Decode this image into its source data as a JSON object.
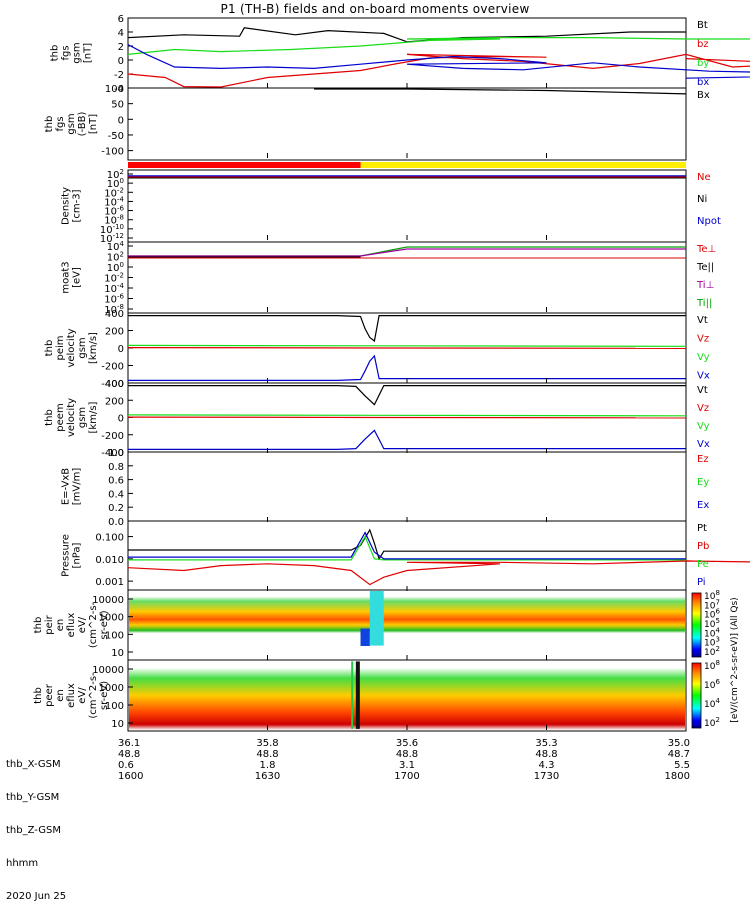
{
  "title": "P1 (TH-B) fields and on-board moments overview",
  "colors": {
    "black": "#000000",
    "red": "#e00000",
    "green": "#18dd18",
    "blue": "#0000cc",
    "purple": "#a000a0",
    "darkgreen": "#00a000",
    "yellow": "#ffee00"
  },
  "chart_data": [
    {
      "type": "line",
      "panel": "fgs_gsm",
      "ylabel_lines": [
        "thb",
        "fgs",
        "gsm",
        "[nT]"
      ],
      "ylim": [
        -4,
        6
      ],
      "yticks": [
        "6",
        "4",
        "2",
        "0",
        "-2",
        "-4"
      ],
      "legend": [
        {
          "label": "Bt",
          "color": "#000000"
        },
        {
          "label": "bz",
          "color": "#e00000"
        },
        {
          "label": "by",
          "color": "#18dd18"
        },
        {
          "label": "bx",
          "color": "#0000cc"
        }
      ],
      "series": [
        {
          "color": "#000000",
          "x": [
            1600,
            1612,
            1624,
            1625,
            1636,
            1643,
            1655,
            1700,
            1712,
            1730,
            1748,
            1800
          ],
          "y": [
            3.2,
            3.6,
            3.4,
            4.6,
            3.6,
            4.2,
            3.8,
            2.6,
            3.2,
            3.4,
            4.0,
            4.0
          ]
        },
        {
          "color": "#e00000",
          "x": [
            1600,
            1608,
            1612,
            1620,
            1630,
            1640,
            1650,
            1658,
            1665,
            1680,
            1690,
            1700,
            1712,
            1725,
            1740,
            1750,
            1760,
            1770,
            1785,
            1800
          ],
          "y": [
            -2.0,
            -2.5,
            -3.8,
            -4.0,
            -2.5,
            -2.0,
            -1.5,
            -0.5,
            0.3,
            0.5,
            0.4,
            0.8,
            0.2,
            -0.2,
            -1.2,
            -0.5,
            0.8,
            -1.0,
            -0.5,
            0.2
          ]
        },
        {
          "color": "#18dd18",
          "x": [
            1600,
            1610,
            1620,
            1635,
            1650,
            1665,
            1680,
            1700,
            1720,
            1740,
            1760,
            1780,
            1800
          ],
          "y": [
            0.8,
            1.5,
            1.2,
            1.5,
            2.0,
            2.8,
            3.0,
            3.0,
            3.2,
            3.2,
            3.0,
            3.0,
            3.0
          ]
        },
        {
          "color": "#0000cc",
          "x": [
            1600,
            1604,
            1610,
            1620,
            1630,
            1640,
            1650,
            1660,
            1670,
            1680,
            1690,
            1700,
            1712,
            1725,
            1740,
            1750,
            1765,
            1780,
            1790,
            1800
          ],
          "y": [
            2.2,
            0.8,
            -1.0,
            -1.2,
            -1.0,
            -1.2,
            -0.6,
            0.0,
            0.5,
            0.2,
            -0.4,
            -0.6,
            -1.2,
            -1.4,
            -0.4,
            -1.0,
            -1.6,
            -1.8,
            -2.2,
            -2.6
          ]
        }
      ]
    },
    {
      "type": "line",
      "panel": "fgs_gsm_ofs",
      "ylabel_lines": [
        "thb",
        "fgs",
        "gsm",
        "(-BB)",
        "[nT]"
      ],
      "ylim": [
        -130,
        100
      ],
      "yticks": [
        "100",
        "50",
        "0",
        "-50",
        "-100"
      ],
      "legend": [
        {
          "label": "Bx",
          "color": "#000000"
        }
      ],
      "series": [
        {
          "color": "#000000",
          "x": [
            1640,
            1645,
            1700,
            1730,
            1800
          ],
          "y": [
            101,
            100,
            99,
            92,
            81
          ]
        }
      ]
    },
    {
      "type": "bar",
      "panel": "mode_bar",
      "segments": [
        {
          "from": 1600,
          "to": 1650,
          "color": "#ff0000"
        },
        {
          "from": 1650,
          "to": 1800,
          "color": "#ffee00"
        }
      ]
    },
    {
      "type": "line",
      "panel": "density",
      "ylabel_lines": [
        "Density",
        "[cm-3]"
      ],
      "scale": "log",
      "yticks": [
        "10^2",
        "10^0",
        "10^-2",
        "10^-4",
        "10^-6",
        "10^-8",
        "10^-10",
        "10^-12"
      ],
      "legend": [
        {
          "label": "Ne",
          "color": "#e00000"
        },
        {
          "label": "Ni",
          "color": "#000000"
        },
        {
          "label": "Npot",
          "color": "#0000cc"
        }
      ]
    },
    {
      "type": "line",
      "panel": "temperature",
      "ylabel_lines": [
        "moat3",
        "[eV]"
      ],
      "scale": "log",
      "yticks": [
        "10^4",
        "10^2",
        "10^0",
        "10^-2",
        "10^-4",
        "10^-6",
        "10^-8"
      ],
      "legend": [
        {
          "label": "Te⊥",
          "color": "#e00000"
        },
        {
          "label": "Te||",
          "color": "#000000"
        },
        {
          "label": "Ti⊥",
          "color": "#a000a0"
        },
        {
          "label": "Ti||",
          "color": "#00a000"
        }
      ]
    },
    {
      "type": "line",
      "panel": "peim_velocity",
      "ylabel_lines": [
        "thb",
        "peim",
        "velocity",
        "gsm",
        "[km/s]"
      ],
      "ylim": [
        -400,
        400
      ],
      "yticks": [
        "400",
        "200",
        "0",
        "-200",
        "-400"
      ],
      "legend": [
        {
          "label": "Vt",
          "color": "#000000"
        },
        {
          "label": "Vz",
          "color": "#e00000"
        },
        {
          "label": "Vy",
          "color": "#18dd18"
        },
        {
          "label": "Vx",
          "color": "#0000cc"
        }
      ],
      "series": [
        {
          "color": "#000000",
          "x": [
            1600,
            1645,
            1650,
            1651,
            1652,
            1653,
            1654,
            1800
          ],
          "y": [
            370,
            370,
            360,
            220,
            120,
            80,
            370,
            370
          ]
        },
        {
          "color": "#e00000",
          "x": [
            1600,
            1800
          ],
          "y": [
            5,
            -5
          ]
        },
        {
          "color": "#18dd18",
          "x": [
            1600,
            1800
          ],
          "y": [
            30,
            20
          ]
        },
        {
          "color": "#0000cc",
          "x": [
            1600,
            1645,
            1650,
            1651,
            1652,
            1653,
            1654,
            1800
          ],
          "y": [
            -370,
            -370,
            -360,
            -260,
            -150,
            -90,
            -350,
            -350
          ]
        }
      ]
    },
    {
      "type": "line",
      "panel": "peem_velocity",
      "ylabel_lines": [
        "thb",
        "peem",
        "velocity",
        "gsm",
        "[km/s]"
      ],
      "ylim": [
        -400,
        400
      ],
      "yticks": [
        "400",
        "200",
        "0",
        "-200",
        "-400"
      ],
      "legend": [
        {
          "label": "Vt",
          "color": "#000000"
        },
        {
          "label": "Vz",
          "color": "#e00000"
        },
        {
          "label": "Vy",
          "color": "#18dd18"
        },
        {
          "label": "Vx",
          "color": "#0000cc"
        }
      ],
      "series": [
        {
          "color": "#000000",
          "x": [
            1600,
            1645,
            1649,
            1651,
            1653,
            1655,
            1800
          ],
          "y": [
            370,
            370,
            360,
            250,
            150,
            370,
            370
          ]
        },
        {
          "color": "#e00000",
          "x": [
            1600,
            1800
          ],
          "y": [
            5,
            -5
          ]
        },
        {
          "color": "#18dd18",
          "x": [
            1600,
            1800
          ],
          "y": [
            30,
            20
          ]
        },
        {
          "color": "#0000cc",
          "x": [
            1600,
            1645,
            1649,
            1651,
            1653,
            1655,
            1800
          ],
          "y": [
            -370,
            -370,
            -360,
            -250,
            -150,
            -360,
            -360
          ]
        }
      ]
    },
    {
      "type": "line",
      "panel": "efield",
      "ylabel_lines": [
        "E=-VxB",
        "[mV/m]"
      ],
      "ylim": [
        0,
        1
      ],
      "yticks": [
        "1.0",
        "0.8",
        "0.6",
        "0.4",
        "0.2",
        "0.0"
      ],
      "legend": [
        {
          "label": "Ez",
          "color": "#e00000"
        },
        {
          "label": "Ey",
          "color": "#18dd18"
        },
        {
          "label": "Ex",
          "color": "#0000cc"
        }
      ]
    },
    {
      "type": "line",
      "panel": "pressure",
      "ylabel_lines": [
        "Pressure",
        "[nPa]"
      ],
      "scale": "log",
      "ylim": [
        0.0004,
        0.5
      ],
      "yticks": [
        "0.100",
        "0.010",
        "0.001"
      ],
      "ytick_values": [
        0.1,
        0.01,
        0.001
      ],
      "legend": [
        {
          "label": "Pt",
          "color": "#000000"
        },
        {
          "label": "Pb",
          "color": "#e00000"
        },
        {
          "label": "Pe",
          "color": "#18dd18"
        },
        {
          "label": "Pi",
          "color": "#0000cc"
        }
      ],
      "series": [
        {
          "color": "#000000",
          "x": [
            1600,
            1648,
            1650,
            1652,
            1653,
            1654,
            1655,
            1800
          ],
          "y": [
            0.025,
            0.025,
            0.04,
            0.2,
            0.05,
            0.01,
            0.022,
            0.022
          ]
        },
        {
          "color": "#e00000",
          "x": [
            1600,
            1612,
            1620,
            1630,
            1640,
            1648,
            1652,
            1655,
            1660,
            1680,
            1700,
            1720,
            1740,
            1760,
            1780,
            1800
          ],
          "y": [
            0.004,
            0.003,
            0.005,
            0.006,
            0.005,
            0.003,
            0.0007,
            0.0015,
            0.003,
            0.006,
            0.007,
            0.007,
            0.006,
            0.008,
            0.007,
            0.008
          ]
        },
        {
          "color": "#18dd18",
          "x": [
            1600,
            1648,
            1651,
            1653,
            1655,
            1800
          ],
          "y": [
            0.009,
            0.009,
            0.1,
            0.01,
            0.009,
            0.009
          ]
        },
        {
          "color": "#0000cc",
          "x": [
            1600,
            1648,
            1651,
            1653,
            1655,
            1800
          ],
          "y": [
            0.012,
            0.012,
            0.15,
            0.02,
            0.01,
            0.01
          ]
        }
      ]
    },
    {
      "type": "heatmap",
      "panel": "peir_en_eflux",
      "ylabel_lines": [
        "thb",
        "peir",
        "en",
        "eflux",
        "eV/",
        "(cm^2-s-",
        "sr-eV)"
      ],
      "scale": "log",
      "yticks": [
        "10000",
        "1000",
        "100",
        "10"
      ]
    },
    {
      "type": "heatmap",
      "panel": "peer_en_eflux",
      "ylabel_lines": [
        "thb",
        "peer",
        "en",
        "eflux",
        "eV/",
        "(cm^2-s-",
        "sr-eV)"
      ],
      "scale": "log",
      "yticks": [
        "10000",
        "1000",
        "100",
        "10"
      ]
    }
  ],
  "xaxis": {
    "range": [
      1600,
      1800
    ],
    "labels": [
      "thb_X-GSM",
      "thb_Y-GSM",
      "thb_Z-GSM",
      "hhmm",
      "2020 Jun 25"
    ],
    "columns": [
      {
        "x": 1600,
        "values": [
          "36.1",
          "48.8",
          "0.6",
          "1600"
        ]
      },
      {
        "x": 1630,
        "values": [
          "35.8",
          "48.8",
          "1.8",
          "1630"
        ]
      },
      {
        "x": 1700,
        "values": [
          "35.6",
          "48.8",
          "3.1",
          "1700"
        ]
      },
      {
        "x": 1730,
        "values": [
          "35.3",
          "48.8",
          "4.3",
          "1730"
        ]
      },
      {
        "x": 1800,
        "values": [
          "35.0",
          "48.7",
          "5.5",
          "1800"
        ]
      }
    ]
  },
  "colorbar": {
    "ticks": [
      "10^8",
      "10^7",
      "10^6",
      "10^5",
      "10^4",
      "10^3",
      "10^2"
    ],
    "label": "[eV/(cm^2-s-sr-eV)] (All Qs)"
  }
}
